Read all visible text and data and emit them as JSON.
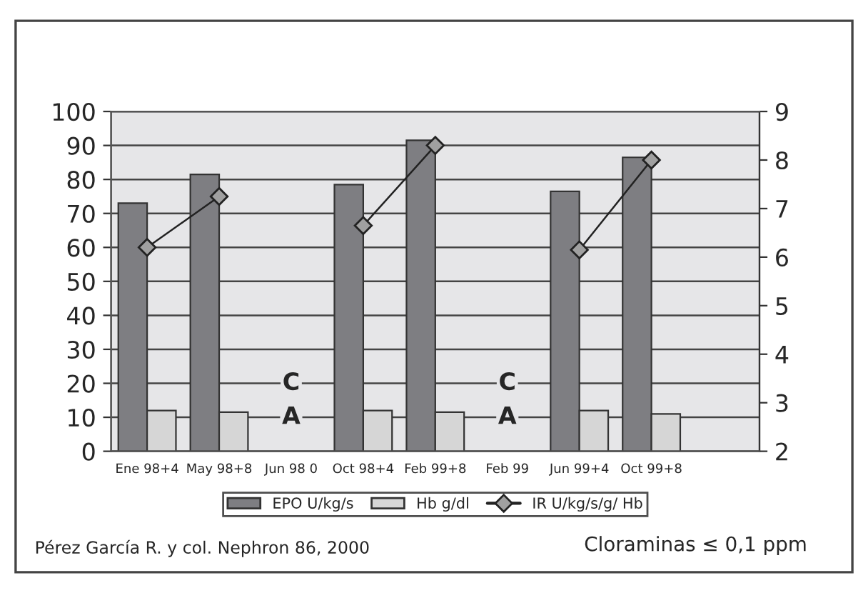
{
  "chart_data": {
    "type": "bar",
    "categories": [
      "Ene 98+4",
      "May 98+8",
      "Jun 98 0",
      "Oct 98+4",
      "Feb 99+8",
      "Feb 99",
      "Jun 99+4",
      "Oct 99+8",
      null
    ],
    "series": [
      {
        "name": "EPO U/kg/s",
        "color": "#7e7e82",
        "values": [
          73,
          81.5,
          null,
          78.5,
          91.5,
          null,
          76.5,
          86.5,
          null
        ]
      },
      {
        "name": "Hb g/dl",
        "color": "#d6d6d6",
        "values": [
          12,
          11.5,
          null,
          12,
          11.5,
          null,
          12,
          11,
          null
        ]
      },
      {
        "name": "IR U/kg/s/g/ Hb",
        "type": "line",
        "axis": "y2",
        "color": "#222222",
        "marker": "diamond",
        "values": [
          6.2,
          7.25,
          null,
          6.65,
          8.3,
          null,
          6.15,
          8.0,
          null
        ]
      }
    ],
    "ylim": [
      0,
      100
    ],
    "yticks": [
      0,
      10,
      20,
      30,
      40,
      50,
      60,
      70,
      80,
      90,
      100
    ],
    "y2lim": [
      2,
      9
    ],
    "y2ticks": [
      2,
      3,
      4,
      5,
      6,
      7,
      8,
      9
    ],
    "grid": "y",
    "legend": "bottom",
    "annotations": [
      "C",
      "A",
      "C",
      "A",
      "Pérez García R. y col. Nephron 86, 2000",
      "Cloraminas ≤ 0,1 ppm"
    ]
  }
}
